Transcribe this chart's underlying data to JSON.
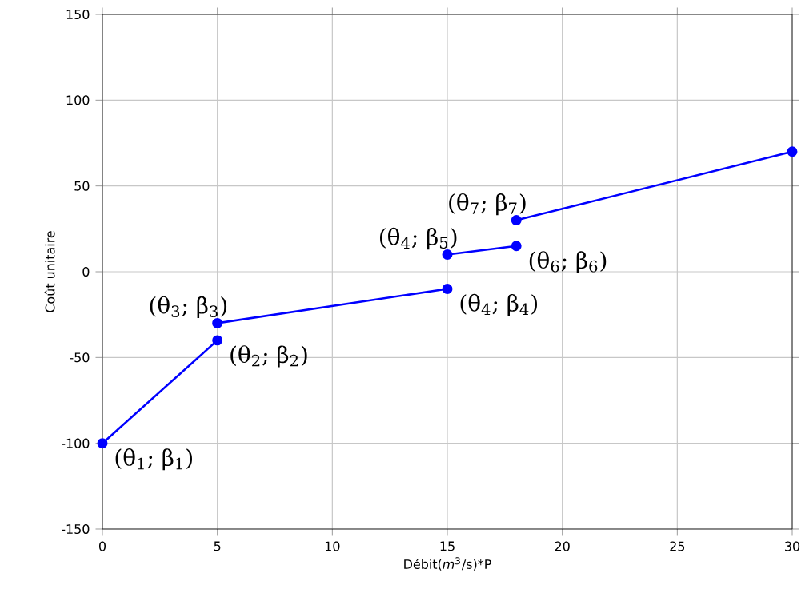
{
  "chart_data": {
    "type": "line",
    "xlabel": "Débit(*m*$^{3}$/s)*P",
    "ylabel": "Coût unitaire",
    "xlim": [
      0,
      30
    ],
    "ylim": [
      -150,
      150
    ],
    "xticks": [
      0,
      5,
      10,
      15,
      20,
      25,
      30
    ],
    "yticks": [
      -150,
      -100,
      -50,
      0,
      50,
      100,
      150
    ],
    "grid": true,
    "marker": "circle",
    "line_style": "solid",
    "series": [
      {
        "color": "#0000ff",
        "x": [
          0,
          5
        ],
        "values": [
          -100,
          -40
        ]
      },
      {
        "color": "#0000ff",
        "x": [
          5,
          15
        ],
        "values": [
          -30,
          -10
        ]
      },
      {
        "color": "#0000ff",
        "x": [
          15,
          18
        ],
        "values": [
          10,
          15
        ]
      },
      {
        "color": "#0000ff",
        "x": [
          18,
          30
        ],
        "values": [
          30,
          70
        ]
      }
    ],
    "annotations": [
      {
        "text": "(θ$_{1}$; β$_{1}$)",
        "x": 0,
        "y": -100
      },
      {
        "text": "(θ$_{2}$; β$_{2}$)",
        "x": 5,
        "y": -40
      },
      {
        "text": "(θ$_{3}$; β$_{3}$)",
        "x": 5,
        "y": -30
      },
      {
        "text": "(θ$_{4}$; β$_{4}$)",
        "x": 15,
        "y": -10
      },
      {
        "text": "(θ$_{4}$; β$_{5}$)",
        "x": 15,
        "y": 10
      },
      {
        "text": "(θ$_{6}$; β$_{6}$)",
        "x": 18,
        "y": 15
      },
      {
        "text": "(θ$_{7}$; β$_{7}$)",
        "x": 18,
        "y": 30
      }
    ]
  }
}
